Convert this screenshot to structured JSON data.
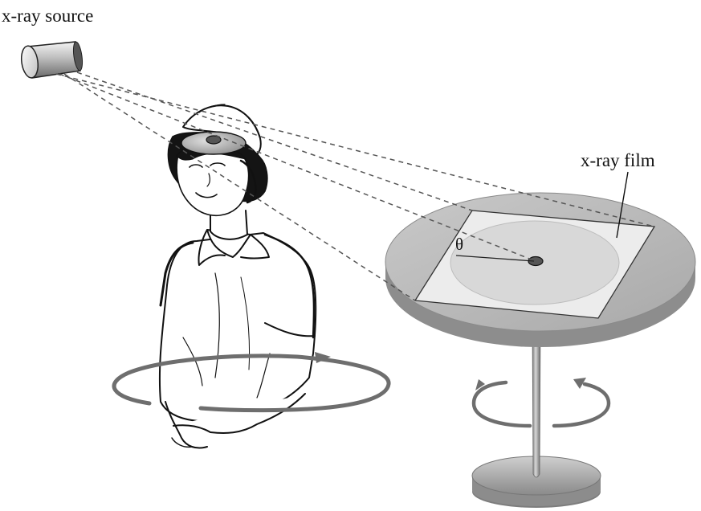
{
  "labels": {
    "source": "x-ray source",
    "film": "x-ray film",
    "angle": "θ"
  },
  "colors": {
    "ink": "#111111",
    "table_top": "#b9b9b9",
    "table_edge": "#8f8f8f",
    "film": "#e6e6e6",
    "film_disc": "#d2d2d2",
    "rotation_arrow": "#6e6e6e",
    "beam": "#555555"
  }
}
